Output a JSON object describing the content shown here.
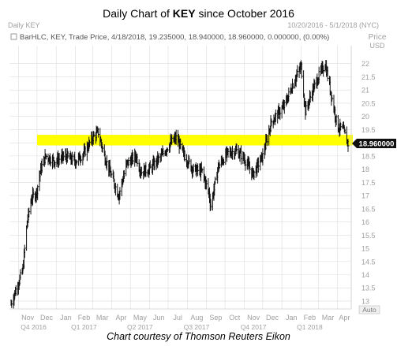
{
  "header": {
    "title_prefix": "Daily Chart of ",
    "title_ticker": "KEY",
    "title_suffix": " since October 2016"
  },
  "panel": {
    "symbol": "Daily KEY",
    "date_range": "10/20/2016 - 5/1/2018 (NYC)",
    "price_label": "Price",
    "currency": "USD",
    "series_info": "BarHLC, KEY, Trade Price,  4/18/2018, 19.235000, 18.940000, 18.960000, 0.000000, (0.00%)",
    "auto_label": "Auto"
  },
  "caption": "Chart courtesy of Thomson Reuters Eikon",
  "colors": {
    "bars": "#111111",
    "highlight": "#ffff00",
    "grid": "#dddddd",
    "axis_text": "#a0a0a0",
    "last_price_box": "#111111"
  },
  "chart_data": {
    "type": "bar",
    "subtype": "ohlc-hlc",
    "x_months": [
      "Nov",
      "Dec",
      "Jan",
      "Feb",
      "Mar",
      "Apr",
      "May",
      "Jun",
      "Jul",
      "Aug",
      "Sep",
      "Oct",
      "Nov",
      "Dec",
      "Jan",
      "Feb",
      "Mar",
      "Apr"
    ],
    "x_quarters": [
      "Q4 2016",
      "Q1 2017",
      "Q2 2017",
      "Q3 2017",
      "Q4 2017",
      "Q1 2018"
    ],
    "y_ticks": [
      "13",
      "13.5",
      "14",
      "14.5",
      "15",
      "15.5",
      "16",
      "16.5",
      "17",
      "17.5",
      "18",
      "18.5",
      "19",
      "19.5",
      "20",
      "20.5",
      "21",
      "21.5",
      "22"
    ],
    "ylim": [
      12.7,
      22.5
    ],
    "last_price": "18.960000",
    "highlight_band": [
      18.9,
      19.3
    ],
    "grid": true,
    "series": [
      {
        "values": [
          {
            "x": "2016-10-20",
            "y": 12.9
          },
          {
            "x": "2016-11-01",
            "y": 13.7
          },
          {
            "x": "2016-11-08",
            "y": 14.2
          },
          {
            "x": "2016-11-15",
            "y": 16.0
          },
          {
            "x": "2016-11-22",
            "y": 16.9
          },
          {
            "x": "2016-11-30",
            "y": 17.1
          },
          {
            "x": "2016-12-07",
            "y": 18.0
          },
          {
            "x": "2016-12-15",
            "y": 18.5
          },
          {
            "x": "2016-12-30",
            "y": 18.3
          },
          {
            "x": "2017-01-15",
            "y": 18.5
          },
          {
            "x": "2017-02-01",
            "y": 18.3
          },
          {
            "x": "2017-02-15",
            "y": 18.6
          },
          {
            "x": "2017-03-01",
            "y": 19.2
          },
          {
            "x": "2017-03-10",
            "y": 19.4
          },
          {
            "x": "2017-03-20",
            "y": 18.5
          },
          {
            "x": "2017-04-01",
            "y": 17.7
          },
          {
            "x": "2017-04-12",
            "y": 17.0
          },
          {
            "x": "2017-04-25",
            "y": 18.2
          },
          {
            "x": "2017-05-10",
            "y": 18.5
          },
          {
            "x": "2017-05-18",
            "y": 17.9
          },
          {
            "x": "2017-06-01",
            "y": 18.0
          },
          {
            "x": "2017-06-20",
            "y": 18.5
          },
          {
            "x": "2017-07-05",
            "y": 19.0
          },
          {
            "x": "2017-07-15",
            "y": 19.2
          },
          {
            "x": "2017-07-25",
            "y": 18.6
          },
          {
            "x": "2017-08-10",
            "y": 18.0
          },
          {
            "x": "2017-08-25",
            "y": 17.9
          },
          {
            "x": "2017-09-05",
            "y": 17.1
          },
          {
            "x": "2017-09-08",
            "y": 16.6
          },
          {
            "x": "2017-09-20",
            "y": 18.1
          },
          {
            "x": "2017-10-05",
            "y": 18.6
          },
          {
            "x": "2017-10-20",
            "y": 18.7
          },
          {
            "x": "2017-11-01",
            "y": 18.4
          },
          {
            "x": "2017-11-15",
            "y": 17.8
          },
          {
            "x": "2017-12-01",
            "y": 18.5
          },
          {
            "x": "2017-12-15",
            "y": 19.8
          },
          {
            "x": "2018-01-05",
            "y": 20.4
          },
          {
            "x": "2018-01-20",
            "y": 21.3
          },
          {
            "x": "2018-02-01",
            "y": 21.9
          },
          {
            "x": "2018-02-08",
            "y": 20.2
          },
          {
            "x": "2018-02-20",
            "y": 21.0
          },
          {
            "x": "2018-03-01",
            "y": 21.5
          },
          {
            "x": "2018-03-12",
            "y": 22.0
          },
          {
            "x": "2018-03-22",
            "y": 20.8
          },
          {
            "x": "2018-04-01",
            "y": 19.6
          },
          {
            "x": "2018-04-10",
            "y": 19.5
          },
          {
            "x": "2018-04-18",
            "y": 18.96
          }
        ]
      }
    ]
  }
}
